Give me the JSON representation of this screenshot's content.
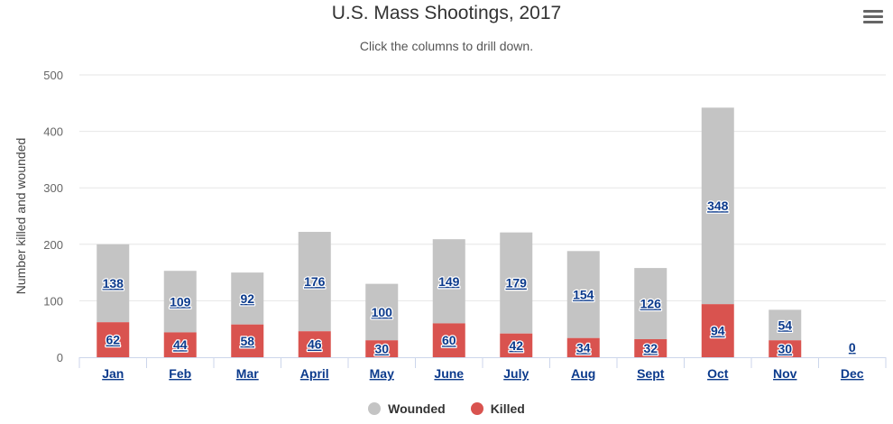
{
  "header": {
    "title": "U.S. Mass Shootings, 2017",
    "subtitle": "Click the columns to drill down.",
    "menu_icon": "hamburger-menu-icon"
  },
  "colors": {
    "wounded": "#c4c4c4",
    "killed": "#d9534f",
    "label": "#0b3a8c",
    "grid": "#e6e6e6",
    "axis": "#ccd6eb"
  },
  "chart_data": {
    "type": "bar",
    "stacked": true,
    "title": "U.S. Mass Shootings, 2017",
    "subtitle": "Click the columns to drill down.",
    "xlabel": "",
    "ylabel": "Number killed and wounded",
    "ylim": [
      0,
      500
    ],
    "yticks": [
      0,
      100,
      200,
      300,
      400,
      500
    ],
    "grid": true,
    "legend_position": "bottom-center",
    "categories": [
      "Jan",
      "Feb",
      "Mar",
      "April",
      "May",
      "June",
      "July",
      "Aug",
      "Sept",
      "Oct",
      "Nov",
      "Dec"
    ],
    "series": [
      {
        "name": "Wounded",
        "color": "#c4c4c4",
        "values": [
          138,
          109,
          92,
          176,
          100,
          149,
          179,
          154,
          126,
          348,
          54,
          0
        ]
      },
      {
        "name": "Killed",
        "color": "#d9534f",
        "values": [
          62,
          44,
          58,
          46,
          30,
          60,
          42,
          34,
          32,
          94,
          30,
          0
        ]
      }
    ]
  },
  "legend": {
    "items": [
      {
        "label": "Wounded",
        "color": "#c4c4c4"
      },
      {
        "label": "Killed",
        "color": "#d9534f"
      }
    ]
  }
}
